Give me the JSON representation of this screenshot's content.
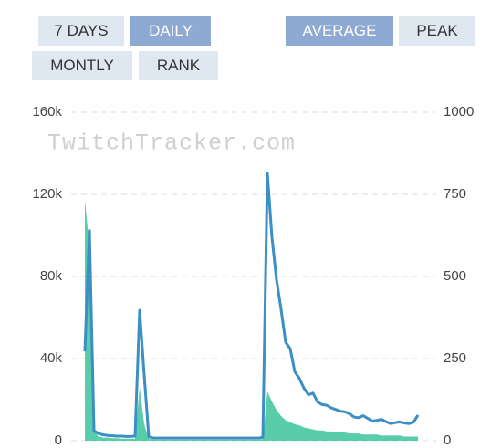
{
  "buttons": [
    {
      "label": "7 DAYS",
      "active": false
    },
    {
      "label": "DAILY",
      "active": true
    },
    {
      "label": "MONTLY",
      "active": false
    },
    {
      "label": "RANK",
      "active": false
    },
    {
      "label": "AVERAGE",
      "active": true
    },
    {
      "label": "PEAK",
      "active": false
    }
  ],
  "chart_data": {
    "type": "line",
    "watermark": "TwitchTracker.com",
    "ylim": [
      0,
      160000
    ],
    "yticks": [
      0,
      {
        "value": 40000,
        "label": "40k"
      },
      {
        "value": 80000,
        "label": "80k"
      },
      {
        "value": 120000,
        "label": "120k"
      },
      {
        "value": 160000,
        "label": "160k"
      }
    ],
    "y2lim": [
      0,
      1000
    ],
    "y2ticks": [
      0,
      250,
      500,
      750,
      1000
    ],
    "grid": true,
    "series": [
      {
        "type": "area",
        "color": "#3cc39a",
        "values": [
          117000,
          95000,
          5000,
          2000,
          1500,
          1500,
          1200,
          1200,
          1000,
          1000,
          1000,
          1000,
          26000,
          8000,
          1000,
          500,
          500,
          500,
          500,
          500,
          500,
          500,
          500,
          500,
          500,
          500,
          500,
          500,
          500,
          500,
          500,
          500,
          500,
          500,
          500,
          500,
          500,
          500,
          500,
          800,
          24000,
          19000,
          15000,
          12000,
          10000,
          9000,
          8000,
          7500,
          6500,
          6000,
          5500,
          5000,
          5000,
          4500,
          4500,
          4000,
          4000,
          4000,
          3500,
          3500,
          3500,
          3000,
          3000,
          3000,
          3000,
          2500,
          2500,
          2500,
          2500,
          2500,
          2000,
          2000,
          2000,
          2000
        ]
      },
      {
        "type": "line",
        "axis": "y2",
        "color": "#3b8fc4",
        "values": [
          272,
          640,
          30,
          22,
          18,
          16,
          15,
          14,
          14,
          13,
          13,
          14,
          397,
          200,
          12,
          8,
          8,
          8,
          8,
          8,
          8,
          8,
          8,
          8,
          8,
          8,
          8,
          8,
          8,
          8,
          8,
          8,
          8,
          8,
          8,
          8,
          8,
          8,
          8,
          10,
          814,
          619,
          490,
          400,
          300,
          280,
          210,
          190,
          160,
          140,
          145,
          118,
          110,
          108,
          100,
          95,
          90,
          88,
          82,
          72,
          70,
          76,
          68,
          60,
          62,
          65,
          58,
          52,
          55,
          57,
          54,
          52,
          56,
          78
        ]
      }
    ]
  }
}
